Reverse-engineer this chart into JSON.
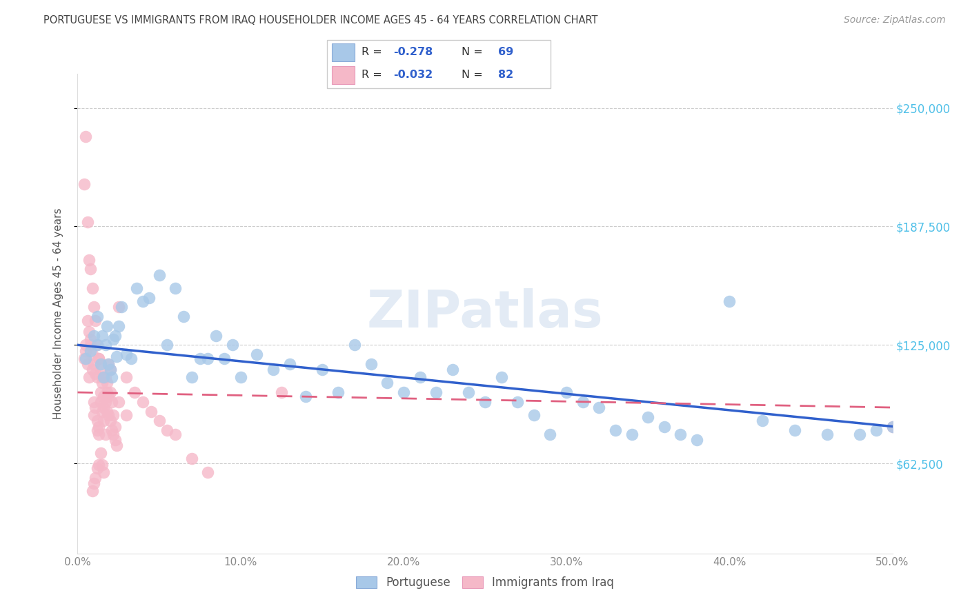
{
  "title": "PORTUGUESE VS IMMIGRANTS FROM IRAQ HOUSEHOLDER INCOME AGES 45 - 64 YEARS CORRELATION CHART",
  "source": "Source: ZipAtlas.com",
  "ylabel": "Householder Income Ages 45 - 64 years",
  "ytick_labels": [
    "$62,500",
    "$125,000",
    "$187,500",
    "$250,000"
  ],
  "ytick_values": [
    62500,
    125000,
    187500,
    250000
  ],
  "ymin": 15000,
  "ymax": 268000,
  "xmin": 0.0,
  "xmax": 0.5,
  "watermark_text": "ZIPatlas",
  "legend_r1": "-0.278",
  "legend_n1": "69",
  "legend_r2": "-0.032",
  "legend_n2": "82",
  "legend_label1": "Portuguese",
  "legend_label2": "Immigrants from Iraq",
  "blue_color": "#a8c8e8",
  "pink_color": "#f5b8c8",
  "blue_line_color": "#3060cc",
  "pink_line_color": "#e06080",
  "title_color": "#444444",
  "ytick_color": "#50c0e8",
  "legend_text_color": "#3060cc",
  "portuguese_x": [
    0.005,
    0.008,
    0.01,
    0.012,
    0.014,
    0.016,
    0.018,
    0.02,
    0.022,
    0.024,
    0.012,
    0.015,
    0.017,
    0.019,
    0.021,
    0.023,
    0.025,
    0.027,
    0.03,
    0.033,
    0.036,
    0.04,
    0.044,
    0.05,
    0.055,
    0.06,
    0.065,
    0.07,
    0.075,
    0.08,
    0.085,
    0.09,
    0.095,
    0.1,
    0.11,
    0.12,
    0.13,
    0.14,
    0.15,
    0.16,
    0.17,
    0.18,
    0.19,
    0.2,
    0.21,
    0.22,
    0.23,
    0.24,
    0.25,
    0.26,
    0.27,
    0.28,
    0.29,
    0.3,
    0.31,
    0.32,
    0.33,
    0.34,
    0.35,
    0.36,
    0.37,
    0.38,
    0.4,
    0.42,
    0.44,
    0.46,
    0.48,
    0.49,
    0.5
  ],
  "portuguese_y": [
    118000,
    122000,
    130000,
    125000,
    115000,
    108000,
    135000,
    112000,
    128000,
    119000,
    140000,
    130000,
    125000,
    115000,
    108000,
    130000,
    135000,
    145000,
    120000,
    118000,
    155000,
    148000,
    150000,
    162000,
    125000,
    155000,
    140000,
    108000,
    118000,
    118000,
    130000,
    118000,
    125000,
    108000,
    120000,
    112000,
    115000,
    98000,
    112000,
    100000,
    125000,
    115000,
    105000,
    100000,
    108000,
    100000,
    112000,
    100000,
    95000,
    108000,
    95000,
    88000,
    78000,
    100000,
    95000,
    92000,
    80000,
    78000,
    87000,
    82000,
    78000,
    75000,
    148000,
    85000,
    80000,
    78000,
    78000,
    80000,
    82000
  ],
  "iraq_x": [
    0.004,
    0.005,
    0.006,
    0.007,
    0.008,
    0.009,
    0.01,
    0.01,
    0.011,
    0.012,
    0.012,
    0.013,
    0.013,
    0.014,
    0.014,
    0.015,
    0.015,
    0.016,
    0.016,
    0.017,
    0.017,
    0.018,
    0.018,
    0.019,
    0.019,
    0.02,
    0.02,
    0.021,
    0.022,
    0.023,
    0.005,
    0.006,
    0.007,
    0.008,
    0.009,
    0.01,
    0.011,
    0.012,
    0.013,
    0.014,
    0.015,
    0.016,
    0.017,
    0.018,
    0.019,
    0.02,
    0.021,
    0.022,
    0.023,
    0.024,
    0.004,
    0.005,
    0.006,
    0.007,
    0.008,
    0.009,
    0.01,
    0.011,
    0.012,
    0.013,
    0.025,
    0.03,
    0.035,
    0.04,
    0.045,
    0.05,
    0.055,
    0.06,
    0.07,
    0.08,
    0.009,
    0.01,
    0.011,
    0.012,
    0.013,
    0.014,
    0.015,
    0.016,
    0.025,
    0.03,
    0.125,
    0.5
  ],
  "iraq_y": [
    118000,
    122000,
    115000,
    108000,
    125000,
    112000,
    95000,
    88000,
    92000,
    85000,
    80000,
    78000,
    82000,
    100000,
    95000,
    108000,
    90000,
    85000,
    92000,
    78000,
    108000,
    105000,
    100000,
    115000,
    98000,
    112000,
    100000,
    95000,
    88000,
    82000,
    125000,
    138000,
    132000,
    128000,
    120000,
    115000,
    110000,
    108000,
    118000,
    112000,
    105000,
    98000,
    95000,
    90000,
    88000,
    85000,
    80000,
    78000,
    75000,
    72000,
    210000,
    235000,
    190000,
    170000,
    165000,
    155000,
    145000,
    138000,
    125000,
    118000,
    145000,
    108000,
    100000,
    95000,
    90000,
    85000,
    80000,
    78000,
    65000,
    58000,
    48000,
    52000,
    55000,
    60000,
    62000,
    68000,
    62000,
    58000,
    95000,
    88000,
    100000,
    82000
  ]
}
